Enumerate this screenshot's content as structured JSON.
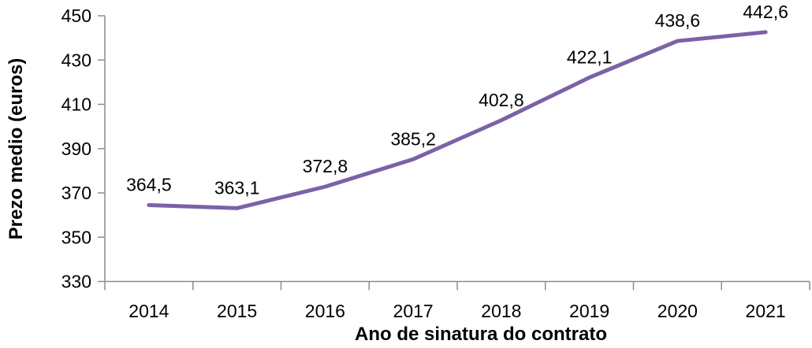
{
  "chart_data": {
    "type": "line",
    "title": "",
    "xlabel": "Ano de sinatura do contrato",
    "ylabel": "Prezo medio (euros)",
    "categories": [
      "2014",
      "2015",
      "2016",
      "2017",
      "2018",
      "2019",
      "2020",
      "2021"
    ],
    "series": [
      {
        "name": "Prezo medio (euros)",
        "values": [
          364.5,
          363.1,
          372.8,
          385.2,
          402.8,
          422.1,
          438.6,
          442.6
        ],
        "labels": [
          "364,5",
          "363,1",
          "372,8",
          "385,2",
          "402,8",
          "422,1",
          "438,6",
          "442,6"
        ],
        "color": "#7B62A6"
      }
    ],
    "ylim": [
      330,
      450
    ],
    "yticks": [
      330,
      350,
      370,
      390,
      410,
      430,
      450
    ],
    "ytick_labels": [
      "330",
      "350",
      "370",
      "390",
      "410",
      "430",
      "450"
    ],
    "grid": false,
    "legend": "none",
    "decimal_separator": ",",
    "axis_color": "#8C8C8C",
    "text_color": "#000000",
    "background_color": "#FFFFFF"
  }
}
